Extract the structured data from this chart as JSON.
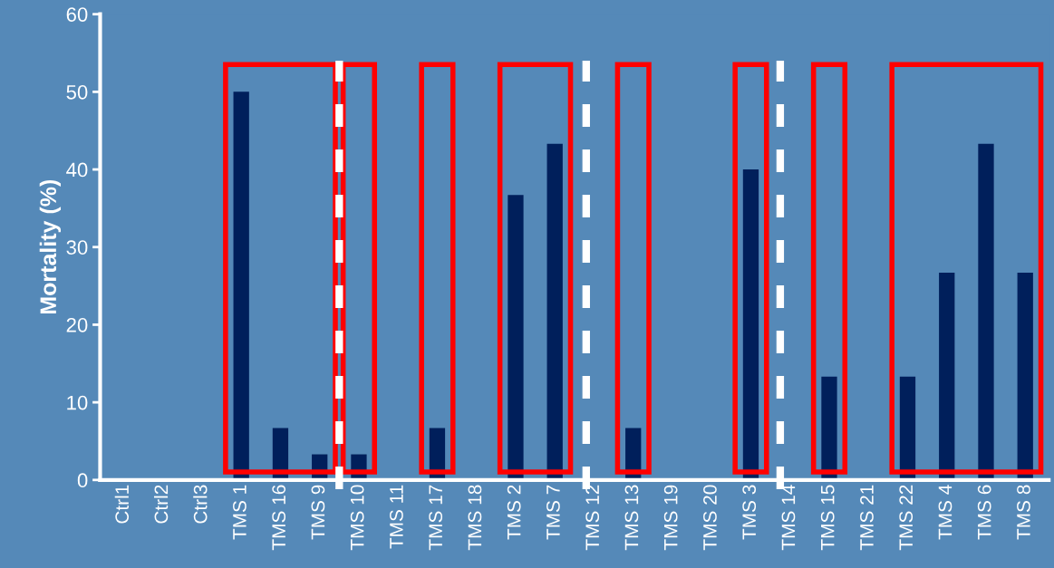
{
  "chart_data": {
    "type": "bar",
    "ylabel": "Mortality (%)",
    "categories": [
      "Ctrl1",
      "Ctrl2",
      "Ctrl3",
      "TMS 1",
      "TMS 16",
      "TMS 9",
      "TMS 10",
      "TMS 11",
      "TMS 17",
      "TMS 18",
      "TMS 2",
      "TMS 7",
      "TMS 12",
      "TMS 13",
      "TMS 19",
      "TMS 20",
      "TMS 3",
      "TMS 14",
      "TMS 15",
      "TMS 21",
      "TMS 22",
      "TMS 4",
      "TMS 6",
      "TMS 8"
    ],
    "values": [
      0,
      0,
      0,
      50,
      6.7,
      3.3,
      3.3,
      0,
      6.7,
      0,
      36.7,
      43.3,
      0,
      6.7,
      0,
      0,
      40,
      0,
      13.3,
      0,
      13.3,
      26.7,
      43.3,
      26.7
    ],
    "color": "#001f5b",
    "ylim": [
      0,
      60
    ],
    "yticks": [
      0,
      10,
      20,
      30,
      40,
      50,
      60
    ]
  }
}
